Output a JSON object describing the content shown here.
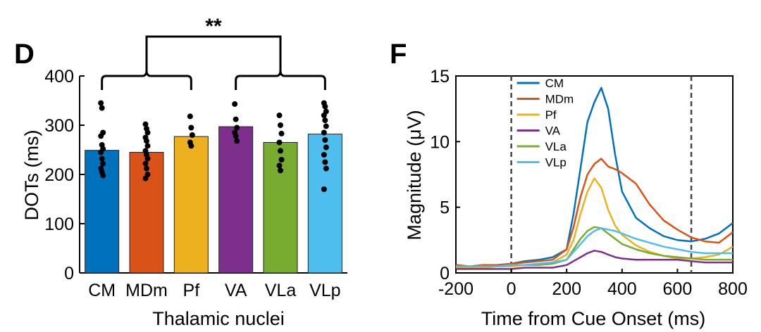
{
  "panels": {
    "d": {
      "letter": "D"
    },
    "f": {
      "letter": "F"
    }
  },
  "significance": "**",
  "chart_data": [
    {
      "type": "bar",
      "title": "",
      "xlabel": "Thalamic nuclei",
      "ylabel": "DOTs (ms)",
      "ylim": [
        0,
        400
      ],
      "yticks": [
        0,
        100,
        200,
        300,
        400
      ],
      "categories": [
        "CM",
        "MDm",
        "Pf",
        "VA",
        "VLa",
        "VLp"
      ],
      "values": [
        249,
        245,
        277,
        297,
        265,
        282
      ],
      "colors": [
        "#0072BD",
        "#D95319",
        "#EDB120",
        "#7E2F8E",
        "#77AC30",
        "#4DBEEE"
      ],
      "points": [
        [
          345,
          335,
          285,
          278,
          260,
          252,
          245,
          232,
          222,
          212,
          205,
          198
        ],
        [
          302,
          293,
          285,
          275,
          268,
          258,
          248,
          240,
          232,
          222,
          212,
          200,
          192
        ],
        [
          318,
          295,
          280,
          265,
          258
        ],
        [
          343,
          312,
          295,
          285,
          278,
          268
        ],
        [
          320,
          300,
          283,
          265,
          248,
          230,
          218,
          208
        ],
        [
          345,
          338,
          328,
          320,
          310,
          298,
          285,
          270,
          255,
          240,
          225,
          212,
          170
        ]
      ],
      "comparison": {
        "groups": [
          [
            "CM",
            "MDm",
            "Pf"
          ],
          [
            "VA",
            "VLa",
            "VLp"
          ]
        ],
        "label": "**"
      },
      "grid": false
    },
    {
      "type": "line",
      "title": "",
      "xlabel": "Time from Cue Onset (ms)",
      "ylabel": "Magnitude (μV)",
      "xlim": [
        -200,
        800
      ],
      "ylim": [
        0,
        15
      ],
      "xticks": [
        -200,
        0,
        200,
        400,
        600,
        800
      ],
      "yticks": [
        0,
        5,
        10,
        15
      ],
      "vlines": [
        0,
        650
      ],
      "legend": "top-left",
      "grid": false,
      "x": [
        -200,
        -150,
        -100,
        -50,
        0,
        50,
        100,
        150,
        200,
        225,
        250,
        275,
        300,
        325,
        350,
        375,
        400,
        450,
        500,
        550,
        600,
        650,
        700,
        750,
        800
      ],
      "series": [
        {
          "name": "CM",
          "color": "#0072BD",
          "values": [
            0.6,
            0.5,
            0.6,
            0.6,
            0.7,
            0.9,
            1.0,
            1.2,
            1.8,
            4.5,
            8.0,
            11.5,
            13.0,
            14.1,
            12.5,
            9.0,
            6.2,
            4.2,
            3.4,
            2.8,
            2.5,
            2.4,
            2.6,
            3.0,
            3.8
          ]
        },
        {
          "name": "MDm",
          "color": "#D95319",
          "values": [
            0.6,
            0.5,
            0.6,
            0.6,
            0.7,
            0.8,
            0.9,
            1.0,
            1.8,
            3.5,
            5.8,
            7.5,
            8.3,
            8.7,
            8.1,
            7.9,
            7.6,
            6.8,
            5.2,
            4.0,
            3.3,
            2.7,
            2.4,
            2.3,
            3.1
          ]
        },
        {
          "name": "Pf",
          "color": "#EDB120",
          "values": [
            0.4,
            0.4,
            0.4,
            0.5,
            0.5,
            0.6,
            0.7,
            0.8,
            1.4,
            2.5,
            4.5,
            6.2,
            7.2,
            6.5,
            4.8,
            3.6,
            2.9,
            2.1,
            1.6,
            1.3,
            1.1,
            1.1,
            1.2,
            1.4,
            2.0
          ]
        },
        {
          "name": "VA",
          "color": "#7E2F8E",
          "values": [
            0.3,
            0.3,
            0.3,
            0.3,
            0.3,
            0.4,
            0.4,
            0.4,
            0.6,
            0.9,
            1.2,
            1.5,
            1.7,
            1.6,
            1.4,
            1.2,
            1.1,
            1.0,
            1.0,
            1.0,
            1.0,
            0.9,
            0.8,
            0.8,
            0.8
          ]
        },
        {
          "name": "VLa",
          "color": "#77AC30",
          "values": [
            0.5,
            0.5,
            0.5,
            0.5,
            0.6,
            0.6,
            0.6,
            0.7,
            1.0,
            1.8,
            2.6,
            3.2,
            3.5,
            3.4,
            3.0,
            2.6,
            2.2,
            1.8,
            1.5,
            1.3,
            1.2,
            1.1,
            1.0,
            1.0,
            1.0
          ]
        },
        {
          "name": "VLp",
          "color": "#4DBEEE",
          "values": [
            0.5,
            0.5,
            0.5,
            0.5,
            0.6,
            0.6,
            0.7,
            0.8,
            1.0,
            1.6,
            2.2,
            2.8,
            3.2,
            3.4,
            3.3,
            3.2,
            3.0,
            2.6,
            2.3,
            2.0,
            1.8,
            1.6,
            1.5,
            1.5,
            1.5
          ]
        }
      ]
    }
  ]
}
